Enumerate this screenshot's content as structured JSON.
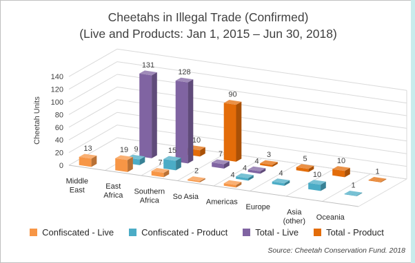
{
  "chart_data": {
    "type": "bar",
    "title": "Cheetahs in Illegal Trade (Confirmed)",
    "subtitle": "(Live and Products: Jan 1, 2015 – Jun 30, 2018)",
    "ylabel": "Cheetah Units",
    "xlabel": "",
    "ylim": [
      0,
      140
    ],
    "yticks": [
      0,
      20,
      40,
      60,
      80,
      100,
      120,
      140
    ],
    "categories": [
      [
        "Middle",
        "East"
      ],
      [
        "East",
        "Africa"
      ],
      [
        "Southern",
        "Africa"
      ],
      [
        "So Asia"
      ],
      [
        "Americas"
      ],
      [
        "Europe"
      ],
      [
        "Asia",
        "(other)"
      ],
      [
        "Oceania"
      ]
    ],
    "series": [
      {
        "name": "Confiscated - Live",
        "color": "#f79646",
        "values": [
          13,
          19,
          7,
          2,
          4,
          null,
          null,
          null
        ]
      },
      {
        "name": "Confiscated - Product",
        "color": "#4bacc6",
        "values": [
          null,
          9,
          15,
          null,
          4,
          4,
          10,
          1
        ]
      },
      {
        "name": "Total - Live",
        "color": "#8064a2",
        "values": [
          null,
          131,
          128,
          7,
          4,
          null,
          null,
          null
        ]
      },
      {
        "name": "Total - Product",
        "color": "#e36c09",
        "values": [
          null,
          null,
          10,
          90,
          3,
          5,
          10,
          1
        ]
      }
    ],
    "grid": true,
    "legend_position": "bottom",
    "source": "Source: Cheetah Conservation Fund. 2018"
  }
}
